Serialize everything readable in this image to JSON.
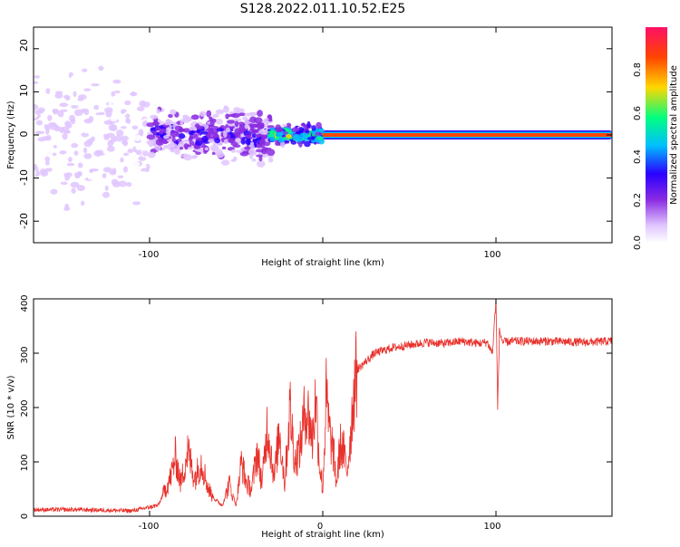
{
  "figure": {
    "title": "S128.2022.011.10.52.E25"
  },
  "chart_data": [
    {
      "type": "heatmap",
      "title": "S128.2022.011.10.52.E25",
      "xlabel": "Height of straight line (km)",
      "ylabel": "Frequency (Hz)",
      "xlim": [
        -167,
        167
      ],
      "ylim": [
        -25,
        25
      ],
      "x_ticks": [
        -100,
        0,
        100
      ],
      "x_tick_labels": [
        "-100",
        "",
        "100"
      ],
      "y_ticks": [
        -20,
        -10,
        0,
        10,
        20
      ],
      "y_tick_labels": [
        "-20",
        "-10",
        "0",
        "10",
        "20"
      ],
      "colorbar": {
        "label": "Normalized spectral amplitude",
        "range": [
          0,
          1
        ],
        "ticks": [
          0.0,
          0.2,
          0.4,
          0.6,
          0.8
        ],
        "tick_labels": [
          "0.0",
          "0.2",
          "0.4",
          "0.6",
          "0.8"
        ],
        "colormap": [
          "#ffffff",
          "#e0c6ff",
          "#8a2be2",
          "#2a00ff",
          "#00bfff",
          "#00ff7f",
          "#ffd700",
          "#ff4500",
          "#ff0f66"
        ]
      },
      "features": [
        {
          "x_range": [
            -167,
            -100
          ],
          "freq_spread_hz": 25,
          "amplitude": 0.1
        },
        {
          "x_range": [
            -100,
            -30
          ],
          "freq_spread_hz": 8,
          "amplitude": 0.3
        },
        {
          "x_range": [
            -30,
            0
          ],
          "freq_spread_hz": 3,
          "amplitude": 0.6
        },
        {
          "x_range": [
            0,
            167
          ],
          "freq_hz": 0,
          "amplitude": 1.0
        }
      ],
      "grid": false
    },
    {
      "type": "line",
      "xlabel": "Height of straight line (km)",
      "ylabel": "SNR (10 * v/v)",
      "xlim": [
        -167,
        167
      ],
      "ylim": [
        0,
        400
      ],
      "x_ticks": [
        -100,
        0,
        100
      ],
      "x_tick_labels": [
        "-100",
        "0",
        "100"
      ],
      "y_ticks": [
        0,
        100,
        200,
        300,
        400
      ],
      "y_tick_labels": [
        "0",
        "100",
        "200",
        "300",
        "400"
      ],
      "color": "#e8302a",
      "series": [
        {
          "x": [
            -167,
            -140,
            -110,
            -95,
            -88,
            -85,
            -82,
            -78,
            -74,
            -70,
            -66,
            -62,
            -58,
            -54,
            -50,
            -47,
            -44,
            -41,
            -38,
            -35,
            -32,
            -28,
            -25,
            -22,
            -19,
            -16,
            -13,
            -10,
            -8,
            -6,
            -4,
            -2,
            0,
            2,
            4,
            6,
            8,
            10,
            12,
            14,
            16,
            18,
            20,
            25,
            30,
            40,
            50,
            60,
            70,
            80,
            90,
            95,
            98,
            100,
            101,
            102,
            104,
            110,
            130,
            150,
            167
          ],
          "y": [
            12,
            12,
            10,
            20,
            70,
            110,
            60,
            120,
            70,
            100,
            50,
            30,
            20,
            60,
            20,
            100,
            60,
            50,
            120,
            60,
            170,
            70,
            160,
            60,
            200,
            100,
            130,
            200,
            180,
            140,
            220,
            100,
            50,
            220,
            150,
            120,
            60,
            130,
            120,
            80,
            150,
            230,
            270,
            285,
            300,
            310,
            315,
            320,
            318,
            322,
            318,
            320,
            300,
            400,
            200,
            340,
            320,
            322,
            322,
            320,
            322
          ]
        }
      ],
      "grid": false
    }
  ]
}
